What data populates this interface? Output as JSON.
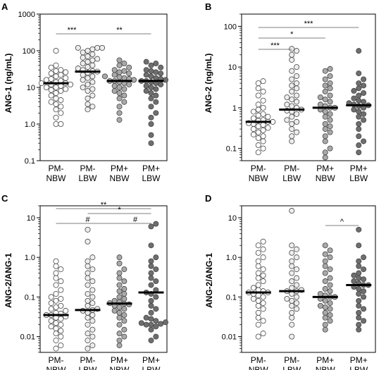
{
  "figure": {
    "panels": [
      {
        "letter": "A",
        "ylabel": "ANG-1 (ng/mL)"
      },
      {
        "letter": "B",
        "ylabel": "ANG-2 (ng/mL)"
      },
      {
        "letter": "C",
        "ylabel": "ANG-2/ANG-1"
      },
      {
        "letter": "D",
        "ylabel": "ANG-2/ANG-1"
      }
    ]
  },
  "colors": {
    "PM- NBW": "#ffffff",
    "PM- LBW": "#ededed",
    "PM+ NBW": "#a9a9a9",
    "PM+ LBW": "#6e6e6e",
    "marker_stroke": "#444444",
    "median_line": "#000000"
  },
  "chart_data": [
    {
      "type": "scatter",
      "panel": "A",
      "ylabel": "ANG-1 (ng/mL)",
      "yscale": "log",
      "ylim": [
        0.1,
        1000
      ],
      "yticks": [
        "0.1",
        "1.0",
        "10",
        "100",
        "1000"
      ],
      "categories": [
        [
          "PM-",
          "NBW"
        ],
        [
          "PM-",
          "LBW"
        ],
        [
          "PM+",
          "NBW"
        ],
        [
          "PM+",
          "LBW"
        ]
      ],
      "medians": [
        13,
        27,
        15,
        15
      ],
      "series": [
        {
          "values": [
            1.0,
            1.0,
            1.5,
            2,
            2.5,
            3,
            3.5,
            4,
            4.5,
            5,
            6,
            7,
            8,
            8.5,
            9,
            10,
            10,
            11,
            12,
            12,
            13,
            13,
            14,
            15,
            16,
            17,
            18,
            20,
            22,
            24,
            26,
            28,
            30,
            35,
            40,
            100
          ]
        },
        {
          "values": [
            2.5,
            3,
            3.5,
            5,
            6,
            8,
            9,
            10,
            12,
            14,
            16,
            18,
            20,
            22,
            25,
            27,
            28,
            30,
            33,
            36,
            40,
            45,
            50,
            55,
            60,
            65,
            70,
            80,
            90,
            100,
            110,
            120,
            120,
            120
          ]
        },
        {
          "values": [
            1.3,
            2,
            3,
            4,
            5,
            6,
            7,
            8,
            9,
            10,
            11,
            12,
            13,
            14,
            15,
            15,
            16,
            17,
            18,
            19,
            20,
            22,
            24,
            26,
            28,
            30,
            35,
            40,
            45,
            55
          ]
        },
        {
          "values": [
            0.3,
            0.5,
            1.0,
            1.5,
            2,
            3,
            4,
            5,
            6,
            7,
            8,
            9,
            10,
            11,
            12,
            13,
            14,
            15,
            15,
            16,
            17,
            18,
            20,
            22,
            24,
            26,
            28,
            30,
            35,
            40,
            45,
            50
          ]
        }
      ],
      "significance": [
        {
          "from": 0,
          "to": 1,
          "label": "***"
        },
        {
          "from": 1,
          "to": 3,
          "label": "**"
        }
      ]
    },
    {
      "type": "scatter",
      "panel": "B",
      "ylabel": "ANG-2 (ng/mL)",
      "yscale": "log",
      "ylim": [
        0.05,
        200
      ],
      "yticks": [
        "0.1",
        "1",
        "10",
        "100"
      ],
      "categories": [
        [
          "PM-",
          "NBW"
        ],
        [
          "PM-",
          "LBW"
        ],
        [
          "PM+",
          "NBW"
        ],
        [
          "PM+",
          "LBW"
        ]
      ],
      "medians": [
        0.45,
        0.9,
        1.0,
        1.15
      ],
      "series": [
        {
          "values": [
            0.08,
            0.1,
            0.12,
            0.15,
            0.18,
            0.2,
            0.22,
            0.25,
            0.28,
            0.3,
            0.32,
            0.35,
            0.38,
            0.4,
            0.42,
            0.45,
            0.45,
            0.48,
            0.5,
            0.55,
            0.6,
            0.65,
            0.7,
            0.8,
            0.9,
            1.0,
            1.2,
            1.5,
            2,
            2.5,
            3,
            4,
            4.5
          ]
        },
        {
          "values": [
            0.15,
            0.2,
            0.25,
            0.3,
            0.4,
            0.45,
            0.5,
            0.6,
            0.7,
            0.8,
            0.85,
            0.9,
            1.0,
            1.1,
            1.2,
            1.4,
            1.6,
            1.8,
            2,
            2.5,
            3,
            3.5,
            4,
            5,
            6,
            8,
            10,
            15,
            20,
            25,
            28
          ]
        },
        {
          "values": [
            0.06,
            0.08,
            0.1,
            0.15,
            0.2,
            0.25,
            0.3,
            0.35,
            0.4,
            0.5,
            0.6,
            0.7,
            0.8,
            0.9,
            1.0,
            1.0,
            1.1,
            1.2,
            1.4,
            1.6,
            1.8,
            2,
            2.5,
            3,
            3.5,
            4,
            5,
            6,
            8,
            9
          ]
        },
        {
          "values": [
            0.08,
            0.12,
            0.15,
            0.2,
            0.3,
            0.4,
            0.5,
            0.6,
            0.7,
            0.8,
            0.9,
            1.0,
            1.1,
            1.15,
            1.2,
            1.3,
            1.4,
            1.5,
            1.7,
            2,
            2.3,
            2.6,
            3,
            3.5,
            4,
            5,
            7,
            25
          ]
        }
      ],
      "significance": [
        {
          "from": 0,
          "to": 3,
          "label": "***"
        },
        {
          "from": 0,
          "to": 2,
          "label": "*"
        },
        {
          "from": 0,
          "to": 1,
          "label": "***"
        }
      ]
    },
    {
      "type": "scatter",
      "panel": "C",
      "ylabel": "ANG-2/ANG-1",
      "yscale": "log",
      "ylim": [
        0.004,
        20
      ],
      "yticks": [
        "0.01",
        "0.1",
        "1.0",
        "10"
      ],
      "categories": [
        [
          "PM-",
          "NBW"
        ],
        [
          "PM-",
          "LBW"
        ],
        [
          "PM+",
          "NBW"
        ],
        [
          "PM+",
          "LBW"
        ]
      ],
      "medians": [
        0.035,
        0.047,
        0.068,
        0.13
      ],
      "series": [
        {
          "values": [
            0.005,
            0.006,
            0.008,
            0.01,
            0.012,
            0.014,
            0.016,
            0.018,
            0.02,
            0.022,
            0.025,
            0.028,
            0.03,
            0.032,
            0.035,
            0.035,
            0.038,
            0.04,
            0.045,
            0.05,
            0.055,
            0.06,
            0.07,
            0.08,
            0.09,
            0.1,
            0.12,
            0.15,
            0.2,
            0.25,
            0.3,
            0.4,
            0.5,
            0.6,
            0.8
          ]
        },
        {
          "values": [
            0.005,
            0.006,
            0.008,
            0.01,
            0.012,
            0.015,
            0.02,
            0.025,
            0.03,
            0.035,
            0.04,
            0.045,
            0.047,
            0.05,
            0.06,
            0.07,
            0.08,
            0.1,
            0.12,
            0.15,
            0.2,
            0.25,
            0.3,
            0.4,
            0.5,
            0.6,
            0.8,
            1.0,
            2.5,
            5
          ]
        },
        {
          "values": [
            0.006,
            0.008,
            0.01,
            0.012,
            0.015,
            0.02,
            0.025,
            0.03,
            0.035,
            0.04,
            0.045,
            0.05,
            0.055,
            0.06,
            0.065,
            0.068,
            0.07,
            0.075,
            0.08,
            0.09,
            0.1,
            0.12,
            0.14,
            0.16,
            0.2,
            0.25,
            0.3,
            0.4,
            0.5,
            0.7,
            1.0
          ]
        },
        {
          "values": [
            0.008,
            0.01,
            0.015,
            0.018,
            0.02,
            0.02,
            0.021,
            0.022,
            0.023,
            0.025,
            0.028,
            0.03,
            0.04,
            0.05,
            0.06,
            0.08,
            0.1,
            0.12,
            0.13,
            0.15,
            0.2,
            0.25,
            0.3,
            0.4,
            0.5,
            0.6,
            0.8,
            1.0,
            2,
            6,
            7
          ]
        }
      ],
      "significance": [
        {
          "from": 0,
          "to": 3,
          "label": "**"
        },
        {
          "from": 1,
          "to": 3,
          "label": "*"
        },
        {
          "from": 0,
          "to": 2,
          "label": "#"
        },
        {
          "from": 2,
          "to": 3,
          "label": "#"
        }
      ]
    },
    {
      "type": "scatter",
      "panel": "D",
      "ylabel": "ANG-2/ANG-1",
      "yscale": "log",
      "ylim": [
        0.004,
        20
      ],
      "yticks": [
        "0.01",
        "0.1",
        "1.0",
        "10"
      ],
      "categories": [
        [
          "PM-",
          "NBW"
        ],
        [
          "PM-",
          "LBW"
        ],
        [
          "PM+",
          "NBW"
        ],
        [
          "PM+",
          "LBW"
        ]
      ],
      "medians": [
        0.13,
        0.14,
        0.1,
        0.2
      ],
      "series": [
        {
          "values": [
            0.01,
            0.012,
            0.02,
            0.025,
            0.03,
            0.04,
            0.05,
            0.06,
            0.07,
            0.08,
            0.09,
            0.1,
            0.11,
            0.12,
            0.13,
            0.13,
            0.14,
            0.15,
            0.17,
            0.2,
            0.25,
            0.3,
            0.35,
            0.4,
            0.5,
            0.6,
            0.8,
            1.0,
            1.3,
            1.6,
            2,
            2.5
          ]
        },
        {
          "values": [
            0.01,
            0.02,
            0.03,
            0.04,
            0.05,
            0.06,
            0.07,
            0.08,
            0.09,
            0.1,
            0.12,
            0.14,
            0.14,
            0.15,
            0.17,
            0.2,
            0.25,
            0.3,
            0.4,
            0.5,
            0.6,
            0.8,
            1.0,
            1.3,
            1.6,
            2,
            15
          ]
        },
        {
          "values": [
            0.015,
            0.02,
            0.025,
            0.03,
            0.035,
            0.04,
            0.05,
            0.055,
            0.06,
            0.07,
            0.08,
            0.09,
            0.1,
            0.1,
            0.11,
            0.12,
            0.14,
            0.16,
            0.2,
            0.25,
            0.3,
            0.4,
            0.5,
            0.6,
            0.8,
            1.0,
            1.2,
            1.5,
            2
          ]
        },
        {
          "values": [
            0.015,
            0.02,
            0.025,
            0.03,
            0.04,
            0.05,
            0.06,
            0.08,
            0.1,
            0.12,
            0.14,
            0.16,
            0.18,
            0.2,
            0.2,
            0.22,
            0.25,
            0.28,
            0.3,
            0.35,
            0.4,
            0.5,
            0.6,
            0.8,
            1.0,
            2,
            5
          ]
        }
      ],
      "significance": [
        {
          "from": 2,
          "to": 3,
          "label": "^"
        }
      ]
    }
  ]
}
